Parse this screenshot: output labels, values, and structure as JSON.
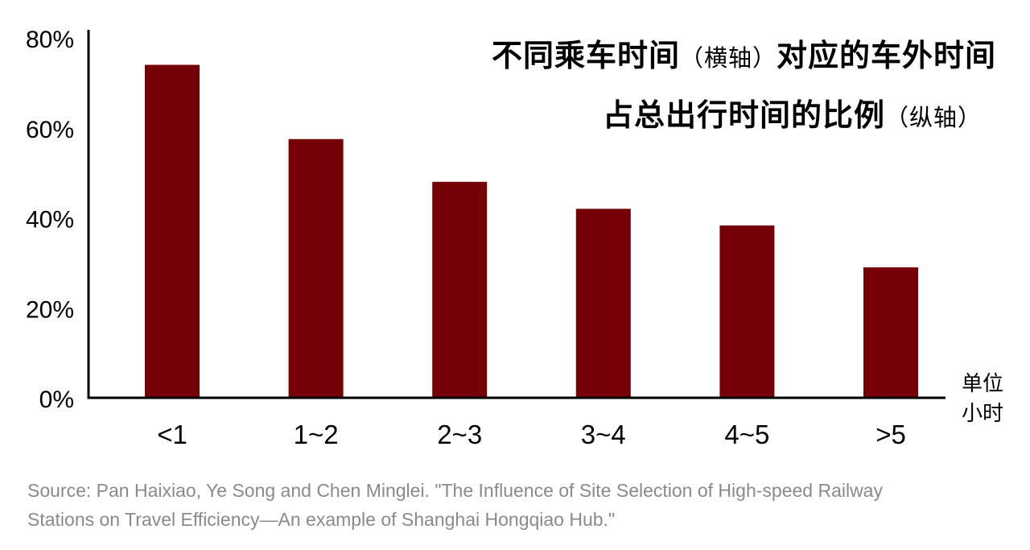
{
  "chart_data": {
    "type": "bar",
    "title_line1_main": "不同乘车时间",
    "title_line1_paren": "（横轴）",
    "title_line1_tail": "对应的车外时间",
    "title_line2_main": "占总出行时间的比例",
    "title_line2_paren": "（纵轴）",
    "categories": [
      "<1",
      "1~2",
      "2~3",
      "3~4",
      "4~5",
      ">5"
    ],
    "values": [
      74,
      57.5,
      48,
      42,
      38.3,
      29
    ],
    "ylim": [
      0,
      80
    ],
    "yticks": [
      0,
      20,
      40,
      60,
      80
    ],
    "ytick_labels": [
      "0%",
      "20%",
      "40%",
      "60%",
      "80%"
    ],
    "unit_line1": "单位",
    "unit_line2": "小时",
    "bar_color": "#750005",
    "grid": false,
    "legend": "none"
  },
  "source": {
    "line1": "Source: Pan Haixiao, Ye Song and Chen Minglei. \"The Influence of Site Selection of High-speed Railway",
    "line2": "Stations on Travel Efficiency—An example of Shanghai Hongqiao Hub.\""
  }
}
